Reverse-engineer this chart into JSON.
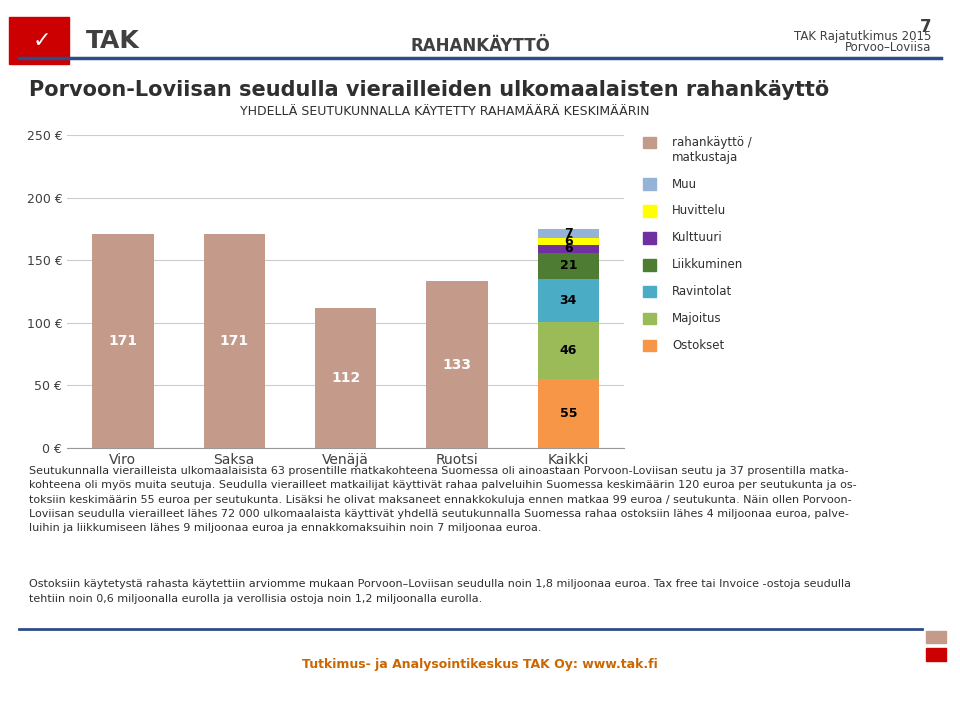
{
  "categories": [
    "Viro",
    "Saksa",
    "Venäjä",
    "Ruotsi",
    "Kaikki"
  ],
  "solid_values": [
    171,
    171,
    112,
    133
  ],
  "solid_color": "#C49A8A",
  "stacked_segments": [
    {
      "label": "Ostokset",
      "value": 55,
      "color": "#F79646"
    },
    {
      "label": "Majoitus",
      "value": 46,
      "color": "#9BBB59"
    },
    {
      "label": "Ravintolat",
      "value": 34,
      "color": "#4BACC6"
    },
    {
      "label": "Liikkuminen",
      "value": 21,
      "color": "#4E7C33"
    },
    {
      "label": "Kulttuuri",
      "value": 6,
      "color": "#7030A0"
    },
    {
      "label": "Huvittelu",
      "value": 6,
      "color": "#FFFF00"
    },
    {
      "label": "Muu",
      "value": 7,
      "color": "#95B3D7"
    }
  ],
  "rahankayto_color": "#C49A8A",
  "title_main_prefix": "P",
  "title_main_rest": "ORVOON-L",
  "title_main_2": "OVIISAN SEUDULLA VIERAILLEIDEN ULKOMAALAISTEN RAHANKÄYTTÖ",
  "title_sub": "YHDELLÄ SEUTUKUNNALLA KÄYTETTY RAHAMÄÄRÄ KESKIMÄÄRIN",
  "ylim": [
    0,
    250
  ],
  "background_color": "#FFFFFF",
  "header_text": "RAHANKÄYTTÖ",
  "page_num": "7",
  "page_sub1": "TAK Rajatutkimus 2015",
  "page_sub2": "Porvoo–Loviisa",
  "footer_text": "Tutkimus- ja Analysointikeskus TAK Oy: www.tak.fi",
  "body_text1": "Seutukunnalla vierailleista ulkomaalaisista 63 prosentille matkakohteena Suomessa oli ainoastaan Porvoon-Loviisan seutu ja 37 prosentilla matka-\nkohteena oli myös muita seutuja. Seudulla vierailleet matkailijat käyttivät rahaa palveluihin Suomessa keskimäärin 120 euroa per seutukunta ja os-\ntoksiin keskimäärin 55 euroa per seutukunta. Lisäksi he olivat maksaneet ennakkokuluja ennen matkaa 99 euroa / seutukunta. Näin ollen Porvoon-\nLoviisan seudulla vierailleet lähes 72 000 ulkomaalaista käyttivät yhdellä seutukunnalla Suomessa rahaa ostoksiin lähes 4 miljoonaa euroa, palve-\nluihin ja liikkumiseen lähes 9 miljoonaa euroa ja ennakkomaksuihin noin 7 miljoonaa euroa.",
  "body_text2": "Ostoksiin käytetystä rahasta käytettiin arviomme mukaan Porvoon–Loviisan seudulla noin 1,8 miljoonaa euroa. Tax free tai Invoice -ostoja seudulla\ntehtiin noin 0,6 miljoonalla eurolla ja verollisia ostoja noin 1,2 miljoonalla eurolla.",
  "legend_items": [
    {
      "label": "rahankäyttö /\nmatkustaja",
      "color": "#C49A8A"
    },
    {
      "label": "Muu",
      "color": "#95B3D7"
    },
    {
      "label": "Huvittelu",
      "color": "#FFFF00"
    },
    {
      "label": "Kulttuuri",
      "color": "#7030A0"
    },
    {
      "label": "Liikkuminen",
      "color": "#4E7C33"
    },
    {
      "label": "Ravintolat",
      "color": "#4BACC6"
    },
    {
      "label": "Majoitus",
      "color": "#9BBB59"
    },
    {
      "label": "Ostokset",
      "color": "#F79646"
    }
  ]
}
